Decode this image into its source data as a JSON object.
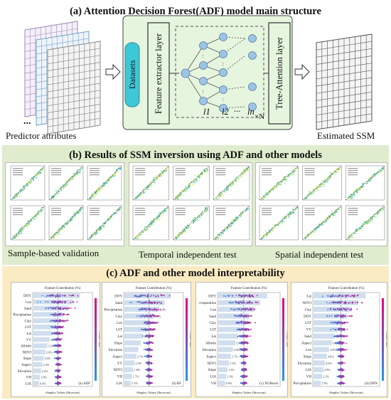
{
  "panel_a": {
    "title": "(a) Attention Decision Forest(ADF)  model main structure",
    "predictor_label": "Predictor attributes",
    "datasets_label": "Datasets",
    "feature_layer_label": "Feature extractor layer",
    "tree_attention_label": "Tree-Attention layer",
    "layer_l1": "l1",
    "layer_l2": "l2",
    "layer_ln": "ln",
    "times_n": "×N",
    "ellipsis": "...",
    "estimated_label": "Estimated SSM",
    "colors": {
      "box_fill": "#e6f5de",
      "datasets_fill": "#3ec7d6",
      "node_fill": "#9cc4e4"
    }
  },
  "panel_b": {
    "title": "(b) Results of SSM inversion using ADF and other models",
    "captions": [
      "Sample-based validation",
      "Temporal independent test",
      "Spatial independent test"
    ],
    "colors": {
      "background": "#dfeccd"
    }
  },
  "panel_c": {
    "title": "(c) ADF and other model interpretability",
    "axis_title_top": "Feature Contribution (%)",
    "axis_title_bottom": "Shapley Values (Ibrowsin)",
    "side_label": "Feature Value",
    "charts": [
      {
        "tag": "(a) ADF",
        "features": [
          "DOY",
          "Lon",
          "Sand",
          "Precipitation",
          "Clay",
          "LST",
          "Lat",
          "VV",
          "Albedo",
          "NDVI",
          "Slope",
          "Aspect",
          "Elevation",
          "VH",
          "LIA"
        ],
        "pcts": [
          "",
          "",
          "",
          "",
          "6.9%",
          "6.6%",
          "5.6%",
          "4.5%",
          "3.3%",
          "2.6%",
          "2.6%",
          "2.3%",
          "2.2%",
          "1.9%",
          "0.4%"
        ]
      },
      {
        "tag": "(b) RF",
        "features": [
          "DOY",
          "Sand",
          "Precipitation",
          "Clay",
          "Lon",
          "LST",
          "Lat",
          "Slope",
          "Elevation",
          "Aspect",
          "VV",
          "NDVI",
          "VH",
          "LIA"
        ],
        "pcts": [
          "",
          "",
          "8.4%",
          "8.4%",
          "7.5%",
          "5.2%",
          "4.4%",
          "",
          "",
          "2.7%",
          "2.5%",
          "1.8%",
          "1.7%",
          "1.1%"
        ]
      },
      {
        "tag": "(c) XGBoost",
        "features": [
          "DOY",
          "evaporation",
          "Lon",
          "Sand",
          "Clay",
          "LST",
          "Lat",
          "Albedo",
          "Elevation",
          "Aspect",
          "NDVI",
          "Slope",
          "LIA",
          "VH"
        ],
        "pcts": [
          "",
          "",
          "",
          "",
          "6.3%",
          "5.7%",
          "5.2%",
          "3.9%",
          "2.9%",
          "2.7%",
          "1.5%",
          "1.2%",
          "1.3%",
          "0.9%"
        ]
      },
      {
        "tag": "(d) DNN",
        "features": [
          "Lat",
          "NDVI",
          "Clay",
          "DOY",
          "LST",
          "VV",
          "Sand",
          "Aspect",
          "Lon",
          "Slope",
          "Elevation",
          "LIA",
          "VH",
          "Precipitation"
        ],
        "pcts": [
          "",
          "",
          "",
          "",
          "",
          "",
          "6.2%",
          "6.0%",
          "4.9%",
          "4.6%",
          "4.0%",
          "2.9%",
          "2.1%",
          "1.5%"
        ]
      }
    ],
    "colors": {
      "background": "#fbebc3",
      "low": "#1f9be8",
      "high": "#e6007e",
      "bar": "#c8d8ea"
    }
  }
}
